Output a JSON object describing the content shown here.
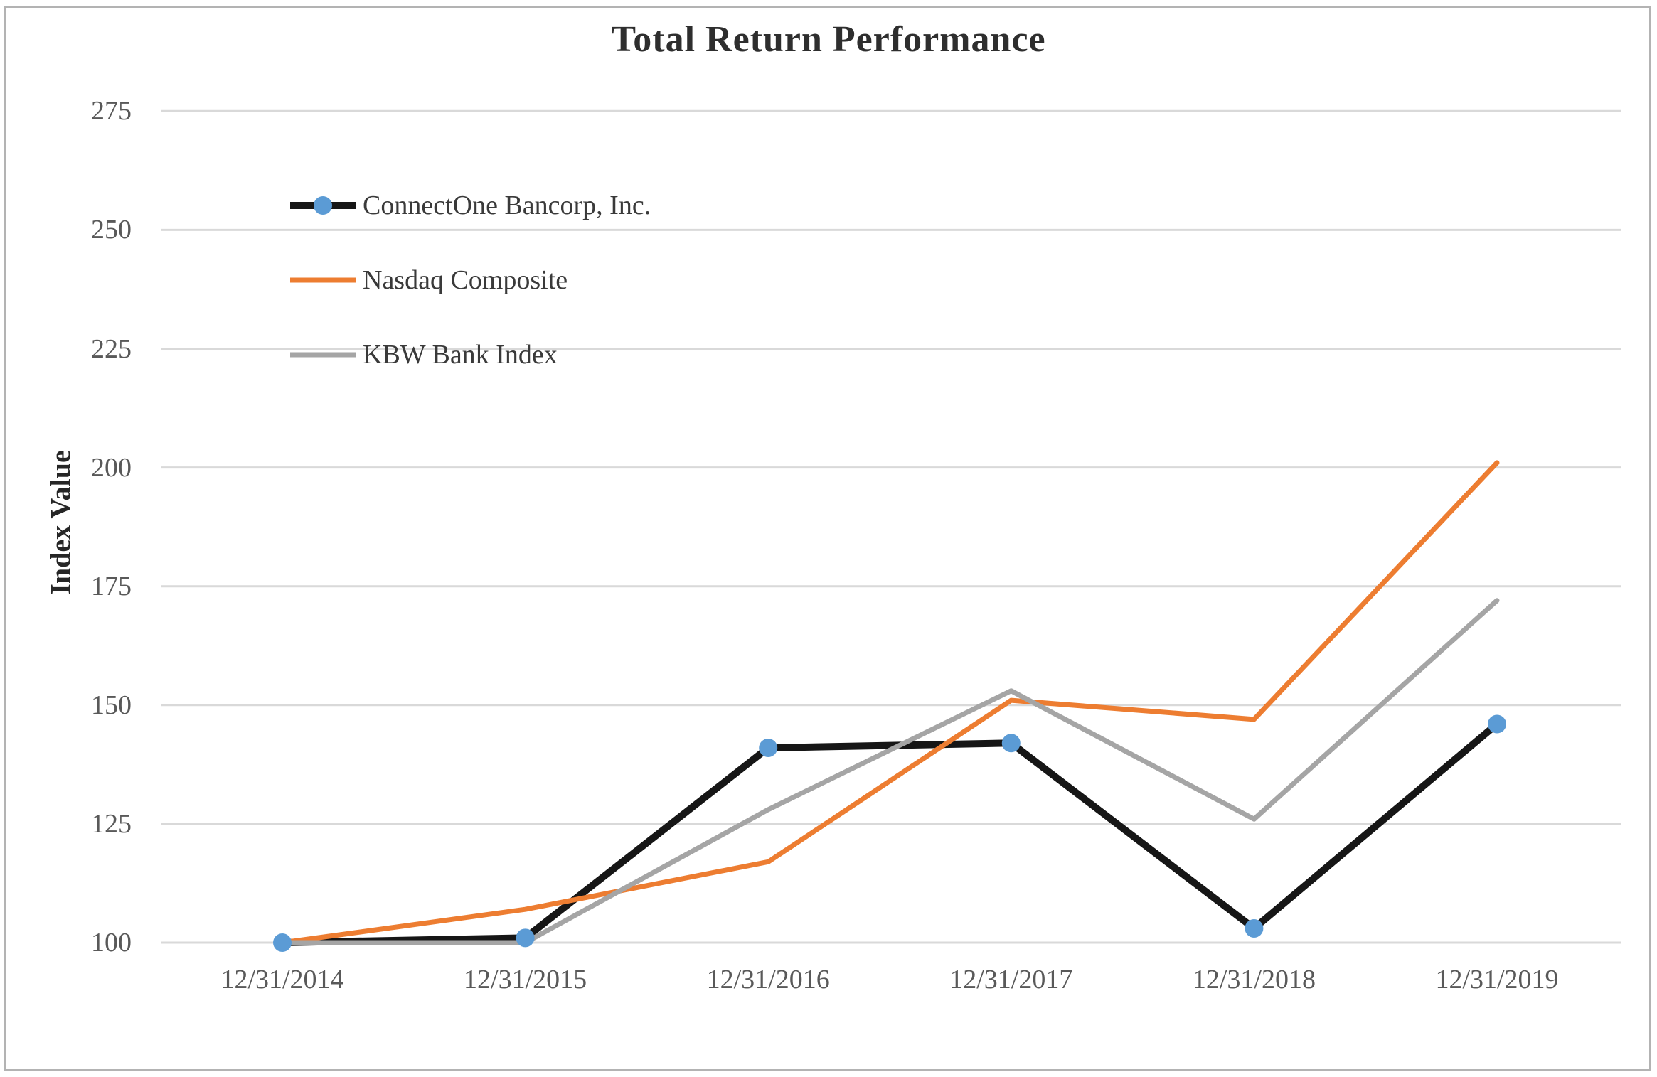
{
  "page": {
    "background_color": "#ffffff",
    "frame_border_color": "#b3b3b3"
  },
  "colors": {
    "grid": "#d9d9d9",
    "tick_text": "#595959",
    "title_text": "#2e2e2e",
    "legend_text": "#3a3a3a",
    "axis_label_text": "#262626"
  },
  "chart_data": {
    "type": "line",
    "title": "Total Return Performance",
    "xlabel": "",
    "ylabel": "Index Value",
    "categories": [
      "12/31/2014",
      "12/31/2015",
      "12/31/2016",
      "12/31/2017",
      "12/31/2018",
      "12/31/2019"
    ],
    "y_ticks": [
      100,
      125,
      150,
      175,
      200,
      225,
      250,
      275
    ],
    "ylim": [
      100,
      275
    ],
    "grid": true,
    "legend_position": "top-left-inside",
    "series": [
      {
        "name": "ConnectOne Bancorp, Inc.",
        "values": [
          100,
          101,
          141,
          142,
          103,
          146
        ],
        "color": "#161616",
        "line_width": 10,
        "marker": "circle",
        "marker_color": "#5b9bd5",
        "marker_radius": 13
      },
      {
        "name": "Nasdaq Composite",
        "values": [
          100,
          107,
          117,
          151,
          147,
          201
        ],
        "color": "#ed7d31",
        "line_width": 7,
        "marker": "none"
      },
      {
        "name": "KBW Bank Index",
        "values": [
          100,
          100,
          128,
          153,
          126,
          172
        ],
        "color": "#a5a5a5",
        "line_width": 7,
        "marker": "none"
      }
    ]
  }
}
